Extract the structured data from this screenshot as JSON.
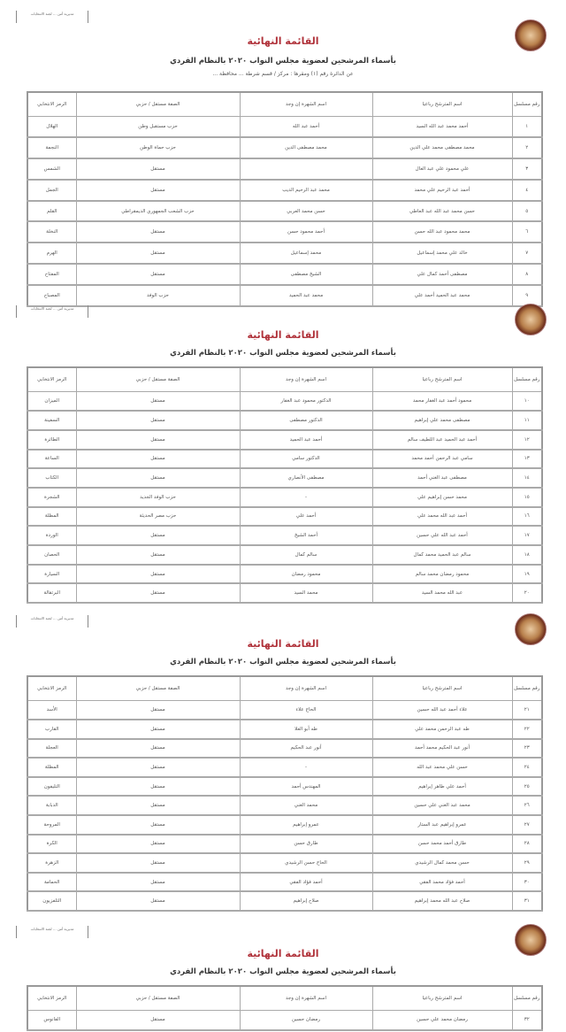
{
  "document": {
    "stamp_text": "مديرية أمن ... لجنة الانتخابات",
    "title": "القائمة النهائية",
    "subtitle": "بأسماء المرشحين لعضوية مجلس النواب ٢٠٢٠ بالنظام الفردي",
    "district_line": "عن الدائرة رقم (١) ومقرها : مركز / قسم شرطة ... محافظة ...",
    "columns": {
      "serial": "رقم مسلسل",
      "name": "اسم المترشح رباعيا",
      "nickname": "اسم الشهرة إن وجد",
      "party": "الصفة مستقل / حزبي",
      "symbol": "الرمز الانتخابي"
    },
    "pages": [
      {
        "rows": [
          [
            "١",
            "أحمد محمد عبد الله السيد",
            "أحمد عبد الله",
            "حزب مستقبل وطن",
            "الهلال"
          ],
          [
            "٢",
            "محمد مصطفى محمد علي الدين",
            "محمد مصطفى الدين",
            "حزب حماة الوطن",
            "النجمة"
          ],
          [
            "٣",
            "علي محمود علي عبد العال",
            "",
            "مستقل",
            "الشمس"
          ],
          [
            "٤",
            "أحمد عبد الرحيم علي محمد",
            "محمد عبد الرحيم الديب",
            "مستقل",
            "الجمل"
          ],
          [
            "٥",
            "حسن محمد عبد الله عبد العاطي",
            "حسن محمد العربي",
            "حزب الشعب الجمهوري الديمقراطي",
            "القلم"
          ],
          [
            "٦",
            "محمد محمود عبد الله حسن",
            "أحمد محمود حسن",
            "مستقل",
            "النخلة"
          ],
          [
            "٧",
            "خالد علي محمد إسماعيل",
            "محمد إسماعيل",
            "مستقل",
            "الهرم"
          ],
          [
            "٨",
            "مصطفى أحمد كمال علي",
            "الشيخ مصطفى",
            "مستقل",
            "المفتاح"
          ],
          [
            "٩",
            "محمد عبد الحميد أحمد علي",
            "محمد عبد الحميد",
            "حزب الوفد",
            "المصباح"
          ]
        ]
      },
      {
        "rows": [
          [
            "١٠",
            "محمود أحمد عبد الغفار محمد",
            "الدكتور محمود عبد الغفار",
            "مستقل",
            "الميزان"
          ],
          [
            "١١",
            "مصطفى محمد علي إبراهيم",
            "الدكتور مصطفى",
            "مستقل",
            "السفينة"
          ],
          [
            "١٢",
            "أحمد عبد الحميد عبد اللطيف سالم",
            "أحمد عبد الحميد",
            "مستقل",
            "الطائرة"
          ],
          [
            "١٣",
            "سامي عبد الرحمن أحمد محمد",
            "الدكتور سامي",
            "مستقل",
            "الساعة"
          ],
          [
            "١٤",
            "مصطفى عبد الغني أحمد",
            "مصطفى الأنصاري",
            "مستقل",
            "الكتاب"
          ],
          [
            "١٥",
            "محمد حسن إبراهيم علي",
            "-",
            "حزب الوفد الجديد",
            "الشجرة"
          ],
          [
            "١٦",
            "أحمد عبد الله محمد علي",
            "أحمد علي",
            "حزب مصر الحديثة",
            "المظلة"
          ],
          [
            "١٧",
            "أحمد عبد الله علي حسين",
            "أحمد الشيخ",
            "مستقل",
            "الوردة"
          ],
          [
            "١٨",
            "سالم عبد الحميد محمد كمال",
            "سالم كمال",
            "مستقل",
            "الحصان"
          ],
          [
            "١٩",
            "محمود رمضان محمد سالم",
            "محمود رمضان",
            "مستقل",
            "السيارة"
          ],
          [
            "٢٠",
            "عبد الله محمد السيد",
            "محمد السيد",
            "مستقل",
            "البرتقالة"
          ]
        ]
      },
      {
        "rows": [
          [
            "٢١",
            "علاء أحمد عبد الله حسين",
            "الحاج علاء",
            "مستقل",
            "الأسد"
          ],
          [
            "٢٢",
            "طه عبد الرحمن محمد علي",
            "طه أبو العلا",
            "مستقل",
            "القارب"
          ],
          [
            "٢٣",
            "أنور عبد الحكيم محمد أحمد",
            "أنور عبد الحكيم",
            "مستقل",
            "العجلة"
          ],
          [
            "٢٤",
            "حسن علي محمد عبد الله",
            "-",
            "مستقل",
            "المظلة"
          ],
          [
            "٢٥",
            "أحمد علي طاهر إبراهيم",
            "المهندس أحمد",
            "مستقل",
            "التليفون"
          ],
          [
            "٢٦",
            "محمد عبد الغني علي حسين",
            "محمد الغني",
            "مستقل",
            "الدبابة"
          ],
          [
            "٢٧",
            "عمرو إبراهيم عبد الستار",
            "عمرو إبراهيم",
            "مستقل",
            "المروحة"
          ],
          [
            "٢٨",
            "طارق أحمد محمد حسن",
            "طارق حسن",
            "مستقل",
            "الكرة"
          ],
          [
            "٢٩",
            "حسن محمد كمال الرشيدي",
            "الحاج حسن الرشيدي",
            "مستقل",
            "الزهرة"
          ],
          [
            "٣٠",
            "أحمد فؤاد محمد الفقي",
            "أحمد فؤاد الفقي",
            "مستقل",
            "الحمامة"
          ],
          [
            "٣١",
            "صلاح عبد الله محمد إبراهيم",
            "صلاح إبراهيم",
            "مستقل",
            "التلفزيون"
          ]
        ]
      },
      {
        "rows": [
          [
            "٣٢",
            "رمضان محمد علي حسين",
            "رمضان حسين",
            "مستقل",
            "الفانوس"
          ]
        ]
      }
    ]
  }
}
